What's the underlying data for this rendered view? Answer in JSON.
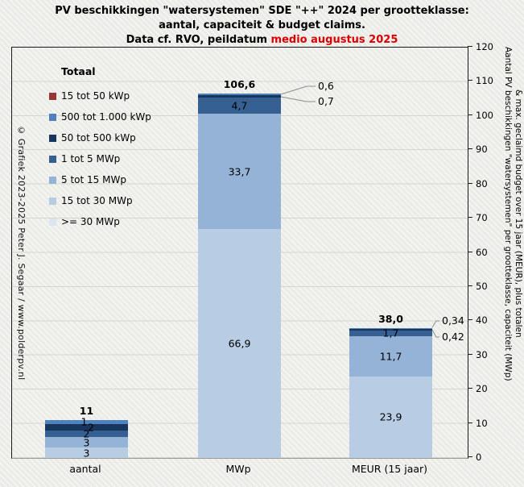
{
  "title": {
    "line1": "PV beschikkingen \"watersystemen\" SDE \"++\" 2024 per grootteklasse:",
    "line2": "aantal, capaciteit & budget claims.",
    "line3_prefix": "Data cf. RVO, peildatum ",
    "line3_highlight": "medio augustus 2025",
    "highlight_color": "#dd0000"
  },
  "watermark_left": "© Grafiek 2023-2025 Peter J. Segaar / www.polderpv.nl",
  "axis_right_title": {
    "line1": "Aantal PV beschikkingen \"watersystemen\" per grootteklasse, capaciteit (MWp)",
    "line2": "& max. geclaimd budget over 15 jaar (MEUR), plus totalen"
  },
  "legend": {
    "header": "Totaal",
    "items": [
      {
        "label": "15 tot 50 kWp",
        "color": "#953735"
      },
      {
        "label": "500 tot 1.000 kWp",
        "color": "#4F81BD"
      },
      {
        "label": "50 tot 500 kWp",
        "color": "#17365D"
      },
      {
        "label": "1 tot 5 MWp",
        "color": "#366092"
      },
      {
        "label": "5 tot 15 MWp",
        "color": "#95B3D7"
      },
      {
        "label": "15 tot 30 MWp",
        "color": "#B8CCE4"
      },
      {
        "label": ">= 30 MWp",
        "color": "#DCE6F1"
      }
    ]
  },
  "chart_data": {
    "type": "bar",
    "stacked": true,
    "title": "PV beschikkingen \"watersystemen\" SDE \"++\" 2024 per grootteklasse: aantal, capaciteit & budget claims. Data cf. RVO, peildatum medio augustus 2025",
    "categories": [
      "aantal",
      "MWp",
      "MEUR (15 jaar)"
    ],
    "ylim": [
      0,
      120
    ],
    "ytick_step": 10,
    "grid": true,
    "legend_position": "top-left",
    "series": [
      {
        "name": "15 tot 50 kWp",
        "color": "#953735",
        "values": [
          0,
          0,
          0
        ]
      },
      {
        "name": "500 tot 1.000 kWp",
        "color": "#4F81BD",
        "values": [
          1,
          0.6,
          0.34
        ]
      },
      {
        "name": "50 tot 500 kWp",
        "color": "#17365D",
        "values": [
          2,
          0.7,
          0.42
        ]
      },
      {
        "name": "1 tot 5 MWp",
        "color": "#366092",
        "values": [
          2,
          4.7,
          1.7
        ]
      },
      {
        "name": "5 tot 15 MWp",
        "color": "#95B3D7",
        "values": [
          3,
          33.7,
          11.7
        ]
      },
      {
        "name": "15 tot 30 MWp",
        "color": "#B8CCE4",
        "values": [
          3,
          66.9,
          23.9
        ]
      },
      {
        "name": ">= 30 MWp",
        "color": "#DCE6F1",
        "values": [
          0,
          0,
          0
        ]
      }
    ],
    "totals": [
      "11",
      "106,6",
      "38,0"
    ]
  },
  "bars": [
    {
      "category": "aantal",
      "total": "11",
      "segments": [
        {
          "name": "500 tot 1.000 kWp",
          "value": 1,
          "label": "1",
          "placement": "inside"
        },
        {
          "name": "50 tot 500 kWp",
          "value": 2,
          "label": "2",
          "placement": "inside"
        },
        {
          "name": "1 tot 5 MWp",
          "value": 2,
          "label": "2",
          "placement": "inside"
        },
        {
          "name": "5 tot 15 MWp",
          "value": 3,
          "label": "3",
          "placement": "inside"
        },
        {
          "name": "15 tot 30 MWp",
          "value": 3,
          "label": "3",
          "placement": "inside"
        }
      ]
    },
    {
      "category": "MWp",
      "total": "106,6",
      "segments": [
        {
          "name": "500 tot 1.000 kWp",
          "value": 0.6,
          "label": "0,6",
          "placement": "callout"
        },
        {
          "name": "50 tot 500 kWp",
          "value": 0.7,
          "label": "0,7",
          "placement": "callout"
        },
        {
          "name": "1 tot 5 MWp",
          "value": 4.7,
          "label": "4,7",
          "placement": "inside"
        },
        {
          "name": "5 tot 15 MWp",
          "value": 33.7,
          "label": "33,7",
          "placement": "inside"
        },
        {
          "name": "15 tot 30 MWp",
          "value": 66.9,
          "label": "66,9",
          "placement": "inside"
        }
      ]
    },
    {
      "category": "MEUR (15 jaar)",
      "total": "38,0",
      "segments": [
        {
          "name": "500 tot 1.000 kWp",
          "value": 0.34,
          "label": "0,34",
          "placement": "callout"
        },
        {
          "name": "50 tot 500 kWp",
          "value": 0.42,
          "label": "0,42",
          "placement": "callout"
        },
        {
          "name": "1 tot 5 MWp",
          "value": 1.7,
          "label": "1,7",
          "placement": "inside"
        },
        {
          "name": "5 tot 15 MWp",
          "value": 11.7,
          "label": "11,7",
          "placement": "inside"
        },
        {
          "name": "15 tot 30 MWp",
          "value": 23.9,
          "label": "23,9",
          "placement": "inside"
        }
      ]
    }
  ]
}
